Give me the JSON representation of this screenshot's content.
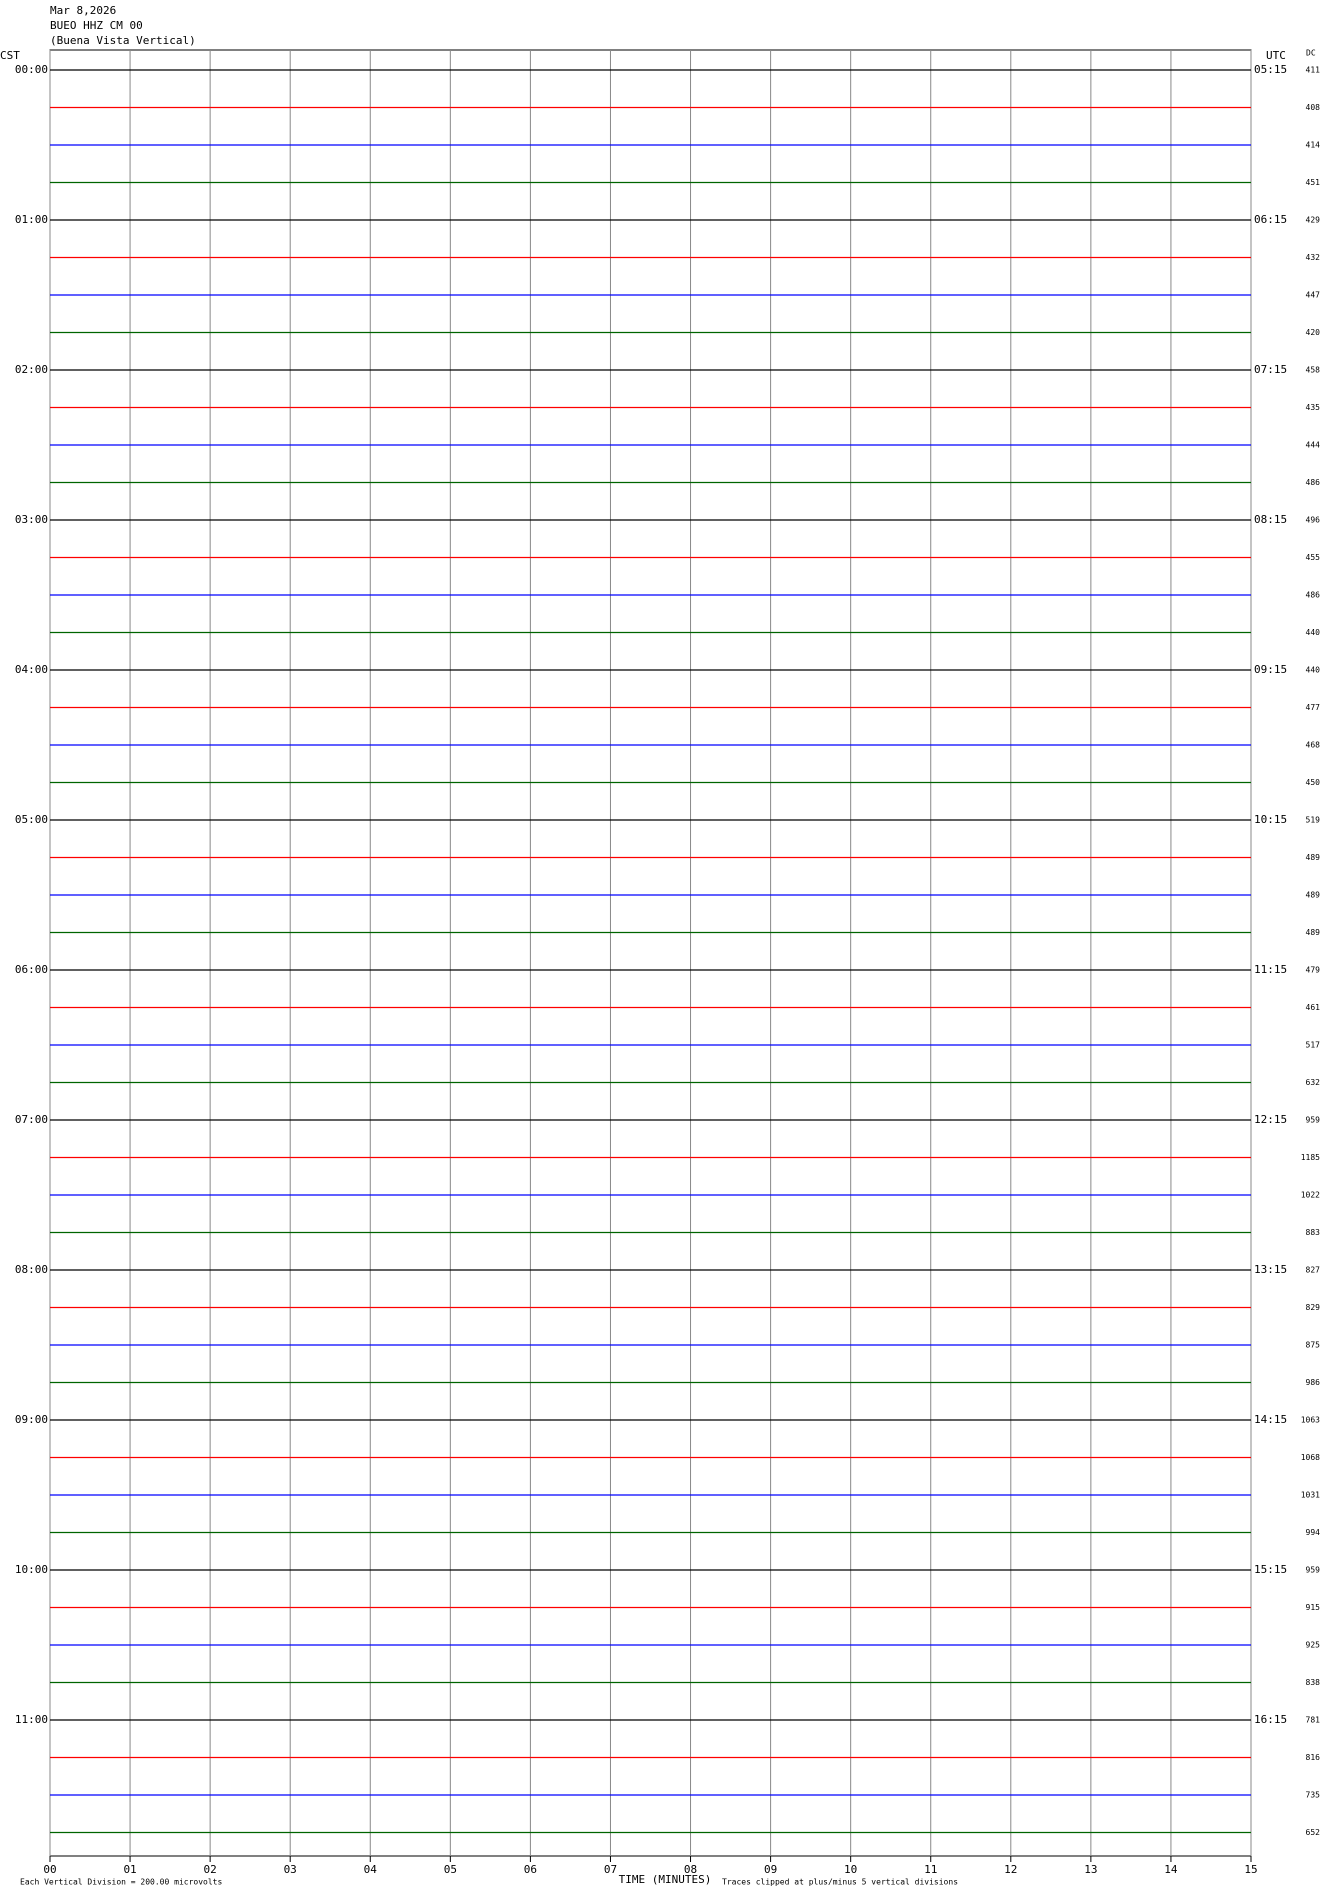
{
  "header": {
    "date": "Mar 8,2026",
    "station": "BUEO HHZ CM 00",
    "location": "(Buena Vista Vertical)"
  },
  "left_axis_label": "CST",
  "right_axis_label": "UTC",
  "dc_label": "DC",
  "trace_colors": [
    "#000000",
    "#ff0000",
    "#0000ff",
    "#006400"
  ],
  "cst_labels": [
    "00:00",
    "01:00",
    "02:00",
    "03:00",
    "04:00",
    "05:00",
    "06:00",
    "07:00",
    "08:00",
    "09:00",
    "10:00",
    "11:00"
  ],
  "utc_labels": [
    "05:15",
    "06:15",
    "07:15",
    "08:15",
    "09:15",
    "10:15",
    "11:15",
    "12:15",
    "13:15",
    "14:15",
    "15:15",
    "16:15"
  ],
  "dc_values": [
    411,
    408,
    414,
    451,
    429,
    432,
    447,
    420,
    458,
    435,
    444,
    486,
    496,
    455,
    486,
    440,
    440,
    477,
    468,
    450,
    519,
    489,
    489,
    489,
    479,
    461,
    517,
    632,
    959,
    1185,
    1022,
    883,
    827,
    829,
    875,
    986,
    1063,
    1068,
    1031,
    994,
    959,
    915,
    925,
    838,
    781,
    816,
    735,
    652
  ],
  "x_ticks": [
    "00",
    "01",
    "02",
    "03",
    "04",
    "05",
    "06",
    "07",
    "08",
    "09",
    "10",
    "11",
    "12",
    "13",
    "14",
    "15"
  ],
  "x_axis_title": "TIME (MINUTES)",
  "footer_left": "Each Vertical Division =  200.00 microvolts",
  "footer_right": "Traces clipped at plus/minus 5 vertical divisions"
}
